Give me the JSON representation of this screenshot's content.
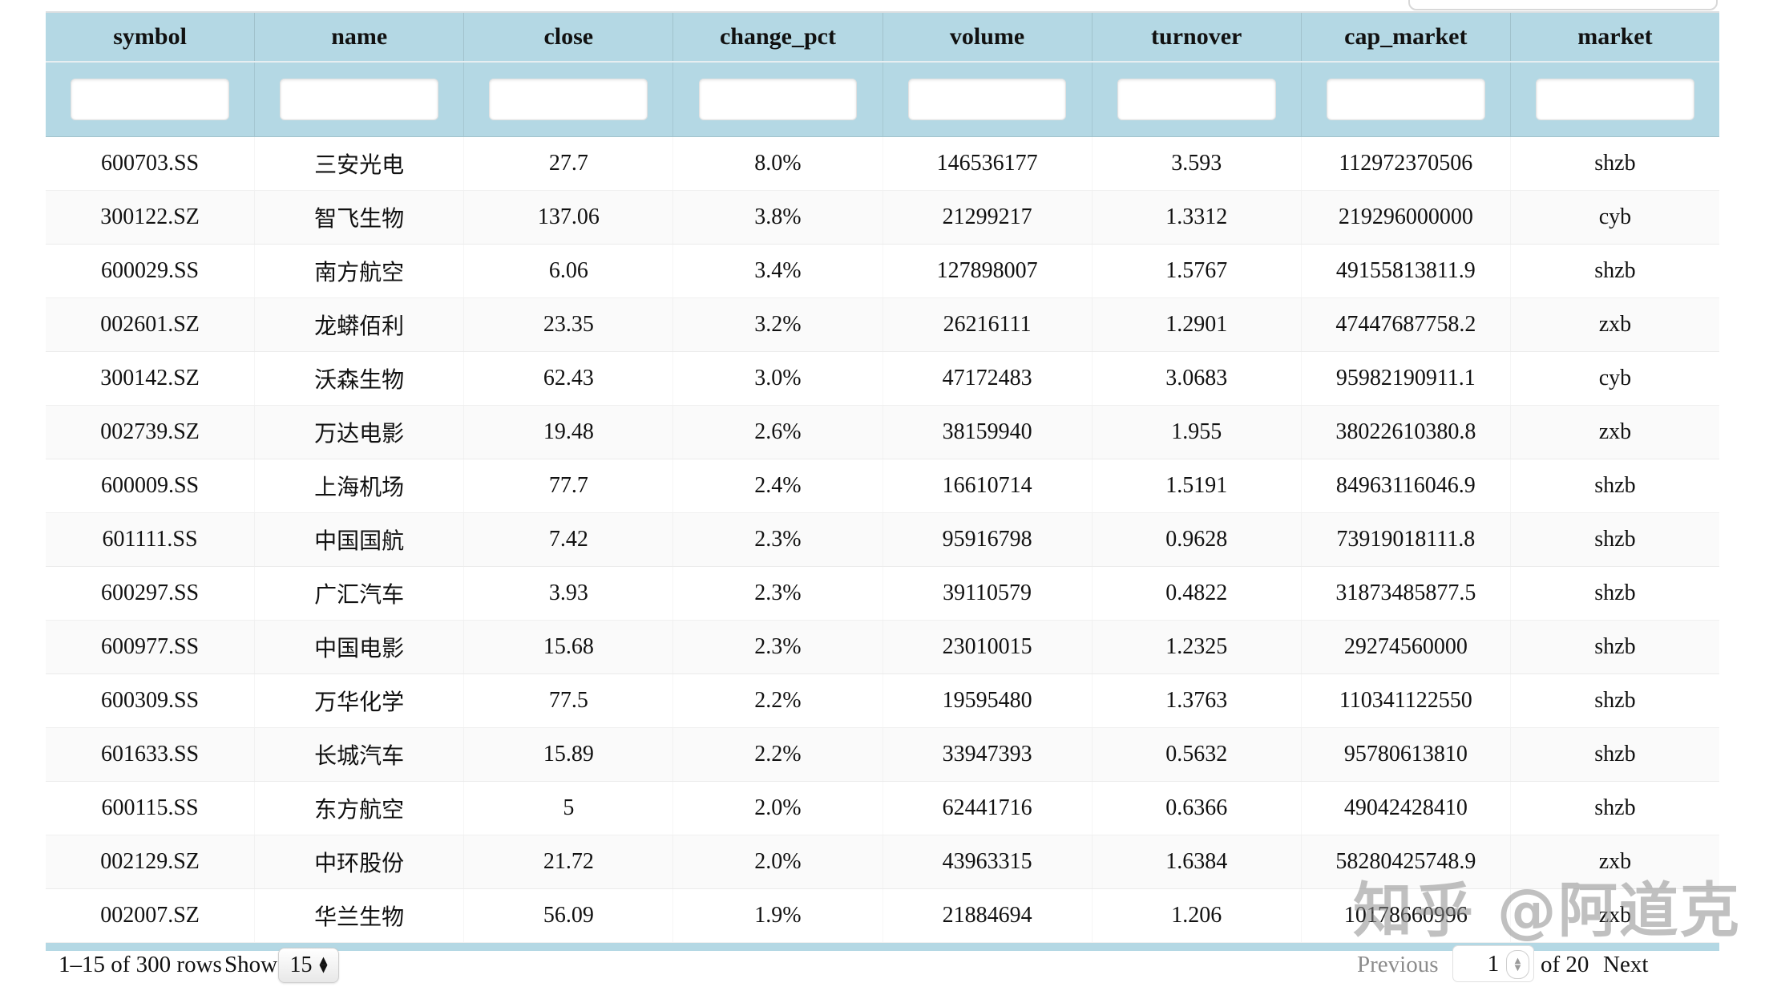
{
  "top_search": {
    "value": ""
  },
  "colors": {
    "header_bg": "#b4d8e4"
  },
  "table": {
    "columns": [
      {
        "key": "symbol",
        "label": "symbol"
      },
      {
        "key": "name",
        "label": "name"
      },
      {
        "key": "close",
        "label": "close"
      },
      {
        "key": "change_pct",
        "label": "change_pct"
      },
      {
        "key": "volume",
        "label": "volume"
      },
      {
        "key": "turnover",
        "label": "turnover"
      },
      {
        "key": "cap_market",
        "label": "cap_market"
      },
      {
        "key": "market",
        "label": "market"
      }
    ],
    "filters": [
      "",
      "",
      "",
      "",
      "",
      "",
      "",
      ""
    ],
    "rows": [
      {
        "symbol": "600703.SS",
        "name": "三安光电",
        "close": "27.7",
        "change_pct": "8.0%",
        "volume": "146536177",
        "turnover": "3.593",
        "cap_market": "112972370506",
        "market": "shzb"
      },
      {
        "symbol": "300122.SZ",
        "name": "智飞生物",
        "close": "137.06",
        "change_pct": "3.8%",
        "volume": "21299217",
        "turnover": "1.3312",
        "cap_market": "219296000000",
        "market": "cyb"
      },
      {
        "symbol": "600029.SS",
        "name": "南方航空",
        "close": "6.06",
        "change_pct": "3.4%",
        "volume": "127898007",
        "turnover": "1.5767",
        "cap_market": "49155813811.9",
        "market": "shzb"
      },
      {
        "symbol": "002601.SZ",
        "name": "龙蟒佰利",
        "close": "23.35",
        "change_pct": "3.2%",
        "volume": "26216111",
        "turnover": "1.2901",
        "cap_market": "47447687758.2",
        "market": "zxb"
      },
      {
        "symbol": "300142.SZ",
        "name": "沃森生物",
        "close": "62.43",
        "change_pct": "3.0%",
        "volume": "47172483",
        "turnover": "3.0683",
        "cap_market": "95982190911.1",
        "market": "cyb"
      },
      {
        "symbol": "002739.SZ",
        "name": "万达电影",
        "close": "19.48",
        "change_pct": "2.6%",
        "volume": "38159940",
        "turnover": "1.955",
        "cap_market": "38022610380.8",
        "market": "zxb"
      },
      {
        "symbol": "600009.SS",
        "name": "上海机场",
        "close": "77.7",
        "change_pct": "2.4%",
        "volume": "16610714",
        "turnover": "1.5191",
        "cap_market": "84963116046.9",
        "market": "shzb"
      },
      {
        "symbol": "601111.SS",
        "name": "中国国航",
        "close": "7.42",
        "change_pct": "2.3%",
        "volume": "95916798",
        "turnover": "0.9628",
        "cap_market": "73919018111.8",
        "market": "shzb"
      },
      {
        "symbol": "600297.SS",
        "name": "广汇汽车",
        "close": "3.93",
        "change_pct": "2.3%",
        "volume": "39110579",
        "turnover": "0.4822",
        "cap_market": "31873485877.5",
        "market": "shzb"
      },
      {
        "symbol": "600977.SS",
        "name": "中国电影",
        "close": "15.68",
        "change_pct": "2.3%",
        "volume": "23010015",
        "turnover": "1.2325",
        "cap_market": "29274560000",
        "market": "shzb"
      },
      {
        "symbol": "600309.SS",
        "name": "万华化学",
        "close": "77.5",
        "change_pct": "2.2%",
        "volume": "19595480",
        "turnover": "1.3763",
        "cap_market": "110341122550",
        "market": "shzb"
      },
      {
        "symbol": "601633.SS",
        "name": "长城汽车",
        "close": "15.89",
        "change_pct": "2.2%",
        "volume": "33947393",
        "turnover": "0.5632",
        "cap_market": "95780613810",
        "market": "shzb"
      },
      {
        "symbol": "600115.SS",
        "name": "东方航空",
        "close": "5",
        "change_pct": "2.0%",
        "volume": "62441716",
        "turnover": "0.6366",
        "cap_market": "49042428410",
        "market": "shzb"
      },
      {
        "symbol": "002129.SZ",
        "name": "中环股份",
        "close": "21.72",
        "change_pct": "2.0%",
        "volume": "43963315",
        "turnover": "1.6384",
        "cap_market": "58280425748.9",
        "market": "zxb"
      },
      {
        "symbol": "002007.SZ",
        "name": "华兰生物",
        "close": "56.09",
        "change_pct": "1.9%",
        "volume": "21884694",
        "turnover": "1.206",
        "cap_market": "10178660996",
        "market": "zxb"
      }
    ]
  },
  "footer": {
    "range_text": "1–15 of 300 rows",
    "show_label": "Show",
    "page_size": "15",
    "previous_label": "Previous",
    "page_value": "1",
    "of_text": "of 20",
    "next_label": "Next"
  },
  "watermark": {
    "text": "知乎 @阿道克"
  }
}
